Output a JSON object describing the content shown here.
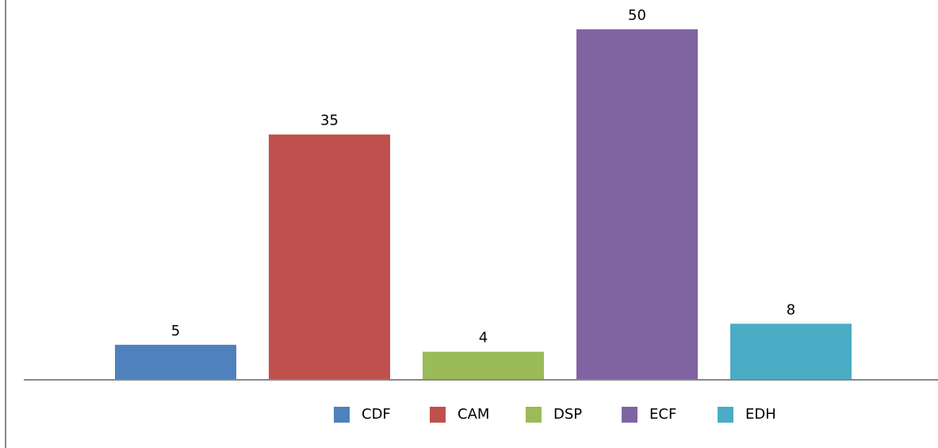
{
  "chart_data": {
    "type": "bar",
    "series": [
      {
        "name": "CDF",
        "color": "#4f81bd",
        "values": [
          5
        ]
      },
      {
        "name": "CAM",
        "color": "#c0504d",
        "values": [
          35
        ]
      },
      {
        "name": "DSP",
        "color": "#9bbb59",
        "values": [
          4
        ]
      },
      {
        "name": "ECF",
        "color": "#8064a2",
        "values": [
          50
        ]
      },
      {
        "name": "EDH",
        "color": "#4bacc6",
        "values": [
          8
        ]
      }
    ],
    "ylim": [
      0,
      50
    ],
    "legend": "bottom"
  }
}
